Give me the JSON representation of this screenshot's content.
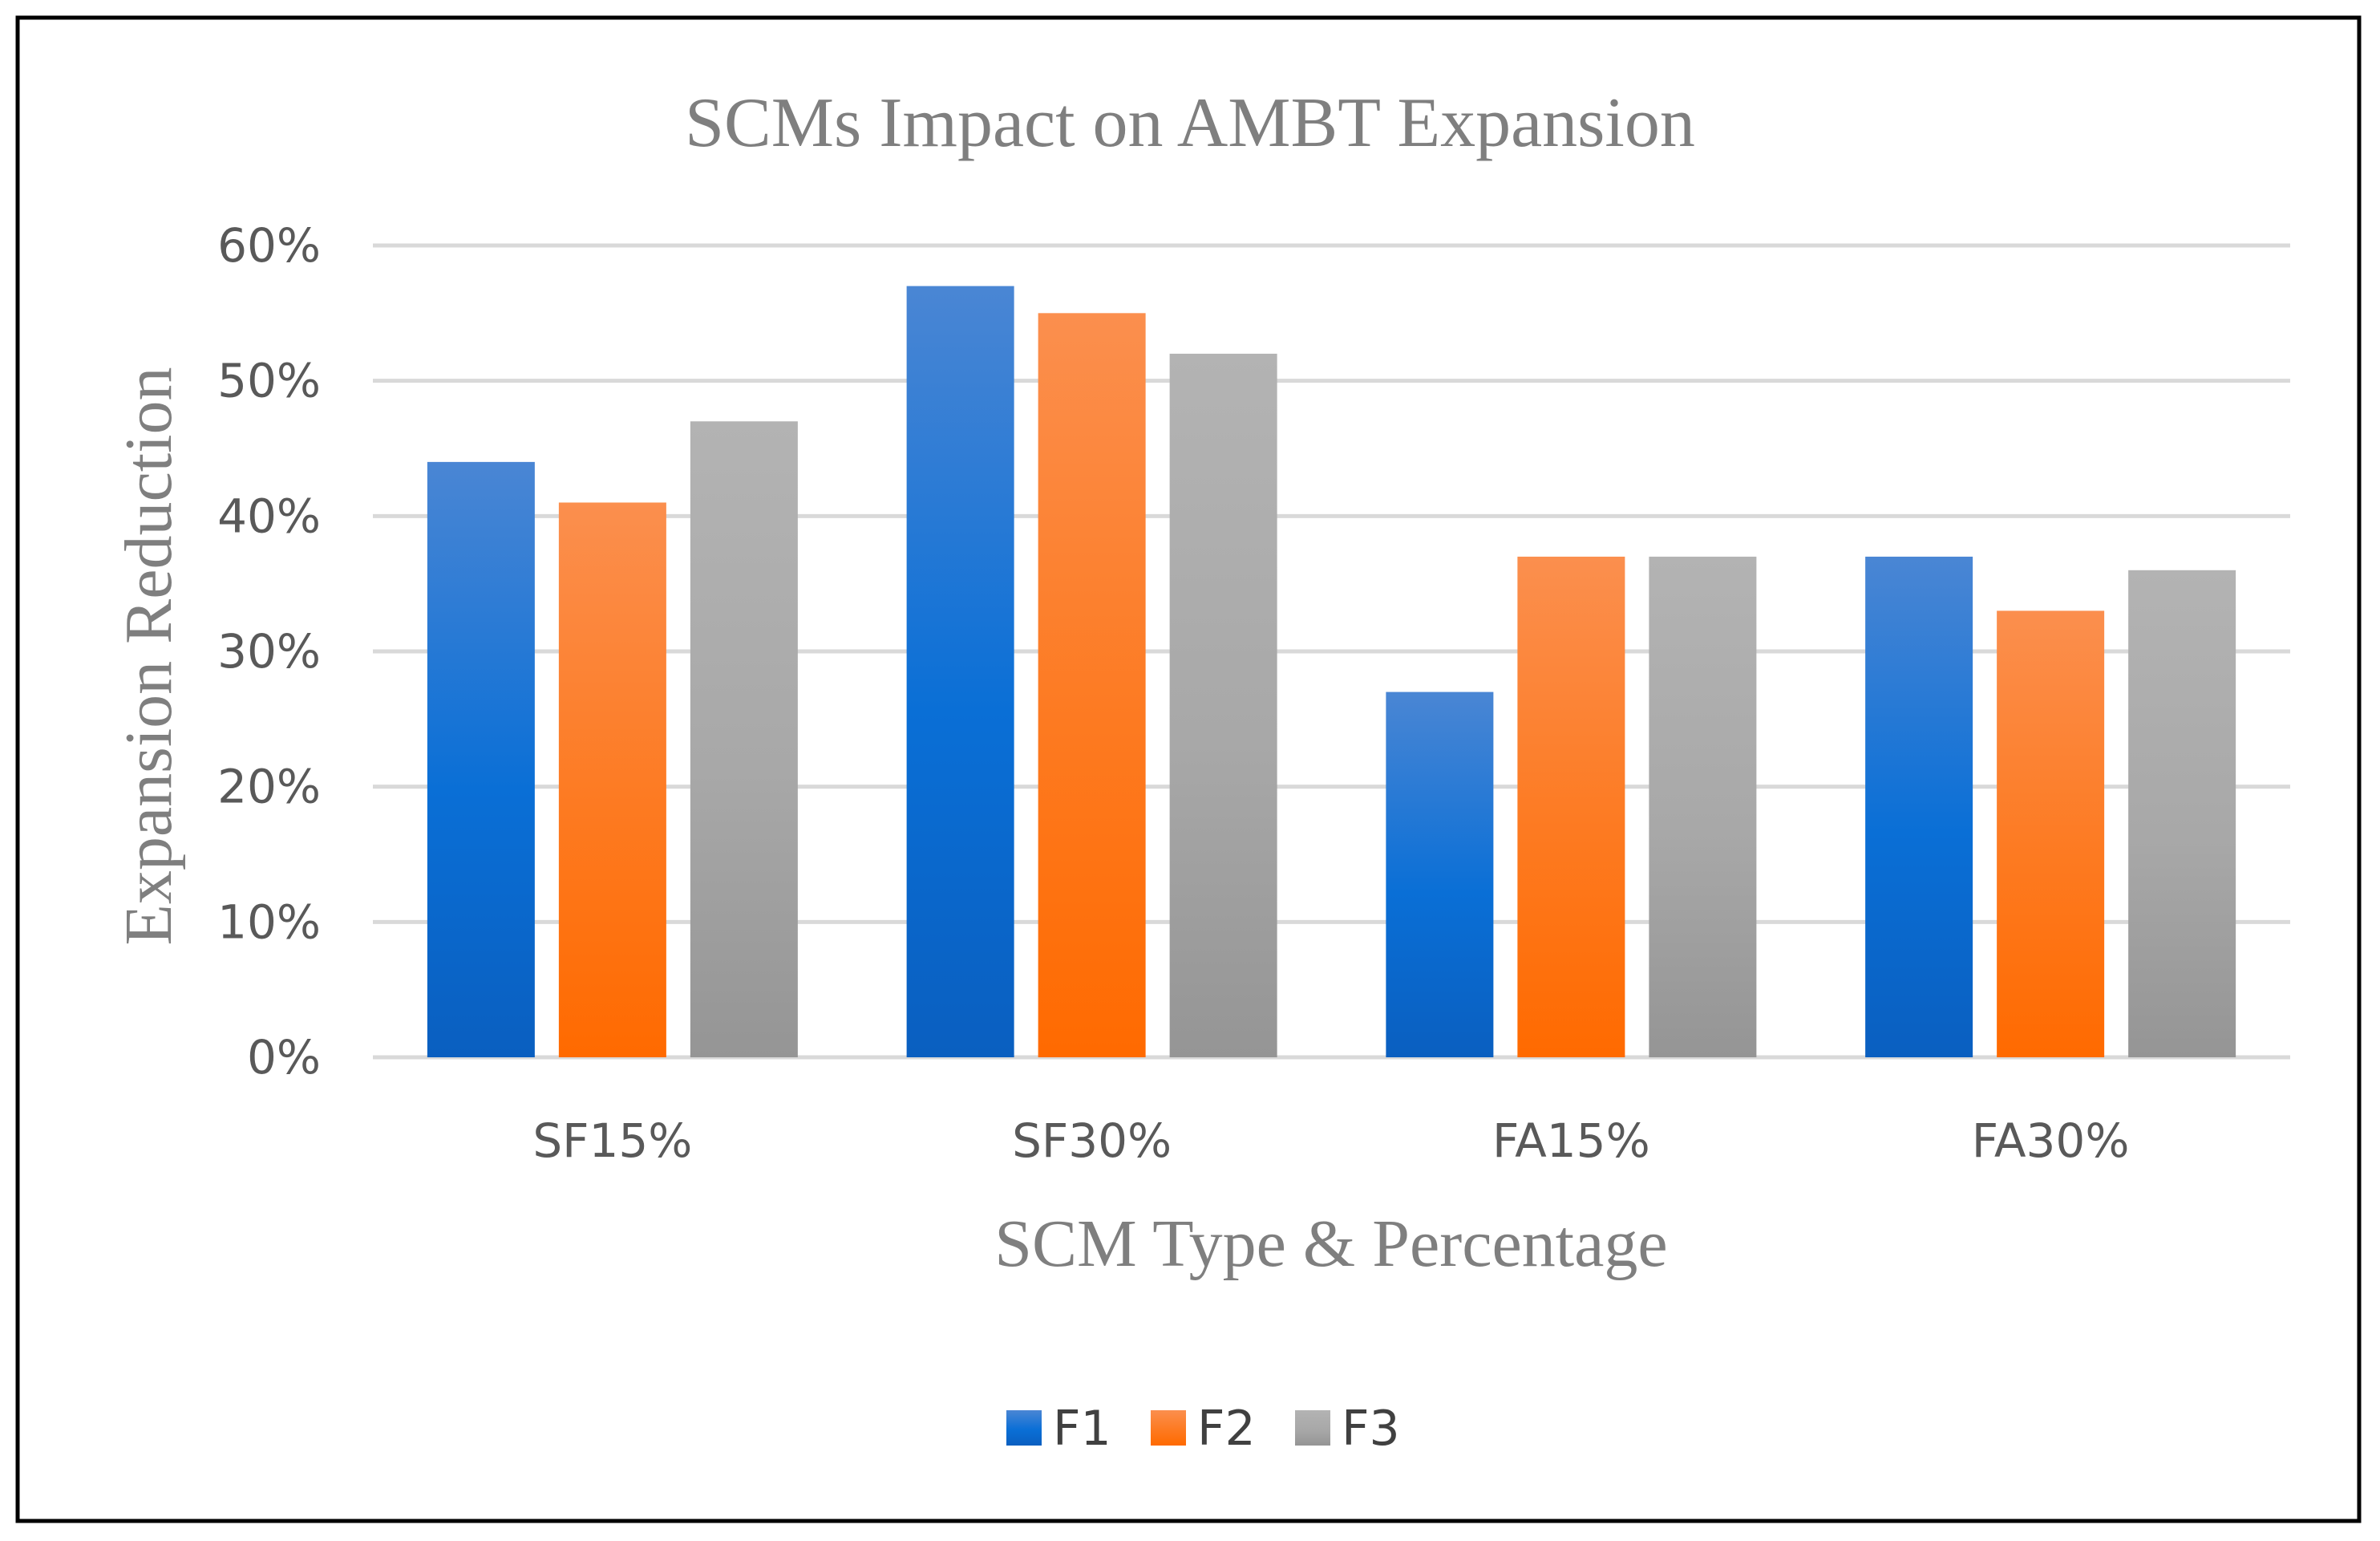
{
  "chart_data": {
    "type": "bar",
    "title": "SCMs Impact on AMBT Expansion",
    "xlabel": "SCM Type & Percentage",
    "ylabel": "Expansion Reduction",
    "categories": [
      "SF15%",
      "SF30%",
      "FA15%",
      "FA30%"
    ],
    "series": [
      {
        "name": "F1",
        "values": [
          44,
          57,
          27,
          37
        ],
        "color_top": "#4a86d4",
        "color_mid": "#0a6fd6",
        "color_bottom": "#0a5fc0"
      },
      {
        "name": "F2",
        "values": [
          41,
          55,
          37,
          33
        ],
        "color_top": "#fb8f4e",
        "color_mid": "#fd7a21",
        "color_bottom": "#ff6a00"
      },
      {
        "name": "F3",
        "values": [
          47,
          52,
          37,
          36
        ],
        "color_top": "#b3b3b3",
        "color_mid": "#a8a8a8",
        "color_bottom": "#959595"
      }
    ],
    "ylim": [
      0,
      60
    ],
    "yticks": [
      0,
      10,
      20,
      30,
      40,
      50,
      60
    ],
    "ytick_labels": [
      "0%",
      "10%",
      "20%",
      "30%",
      "40%",
      "50%",
      "60%"
    ],
    "grid": true,
    "legend": "bottom-center"
  }
}
